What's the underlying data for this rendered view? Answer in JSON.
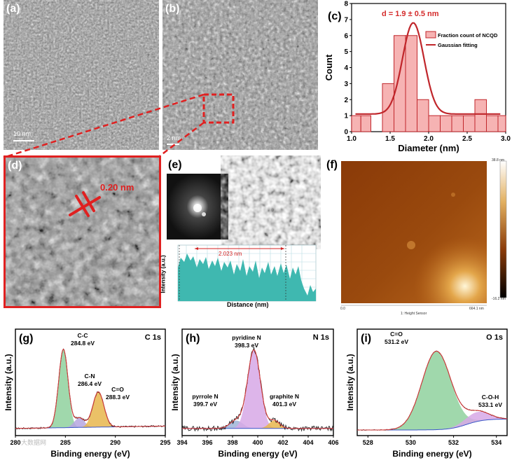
{
  "panels": {
    "a": {
      "label": "(a)",
      "scale_bar": "10 nm"
    },
    "b": {
      "label": "(b)",
      "scale_bar": "2 nm"
    },
    "c": {
      "label": "(c)"
    },
    "d": {
      "label": "(d)",
      "lattice": "0.20 nm"
    },
    "e": {
      "label": "(e)",
      "distance_label": "2.023 nm",
      "xlabel": "Distance (nm)",
      "ylabel": "Intensity (a.u.)"
    },
    "f": {
      "label": "(f)",
      "colorbar_max": "38.8 nm",
      "colorbar_min": "-16.2 nm",
      "axis_min": "0.0",
      "axis_max": "664.1 nm",
      "sensor_label": "1: Height Sensor"
    },
    "g": {
      "label": "(g)",
      "element": "C 1s",
      "xlabel": "Binding energy (eV)",
      "ylabel": "Intensity (a.u.)",
      "watermark": "大数据网"
    },
    "h": {
      "label": "(h)",
      "element": "N 1s",
      "xlabel": "Binding energy (eV)",
      "ylabel": "Intensity (a.u.)"
    },
    "i": {
      "label": "(i)",
      "element": "O 1s",
      "xlabel": "Binding energy (eV)",
      "ylabel": "Intensity (a.u.)"
    }
  },
  "chart_data": [
    {
      "id": "c",
      "type": "bar",
      "title": "d = 1.9 ± 0.5 nm",
      "xlabel": "Diameter (nm)",
      "ylabel": "Count",
      "xlim": [
        1.0,
        3.0
      ],
      "ylim": [
        0,
        8
      ],
      "xticks": [
        "1.0",
        "1.5",
        "2.0",
        "2.5",
        "3.0"
      ],
      "yticks": [
        "0",
        "1",
        "2",
        "3",
        "4",
        "5",
        "6",
        "7",
        "8"
      ],
      "bins": [
        1.0,
        1.1,
        1.2,
        1.3,
        1.4,
        1.5,
        1.6,
        1.7,
        1.8,
        1.9,
        2.0,
        2.1,
        2.2,
        2.3,
        2.4,
        2.5,
        2.6,
        2.7,
        2.8,
        2.9,
        3.0
      ],
      "legend": [
        "Fraction count of NCQD",
        "Gaussian fitting"
      ],
      "legend_position": "top-right",
      "colors": {
        "bar_fill": "#f6b3b3",
        "bar_edge": "#c0262b",
        "fit": "#c0262b",
        "title": "#d42a2a"
      }
    },
    {
      "id": "g",
      "type": "line",
      "title": "C 1s",
      "xlabel": "Binding energy (eV)",
      "ylabel": "Intensity (a.u.)",
      "xlim": [
        280,
        295
      ],
      "xticks": [
        "280",
        "285",
        "290",
        "295"
      ],
      "peaks": [
        {
          "name": "C-C",
          "value": "284.8 eV",
          "center": 284.8,
          "height": 1.0,
          "width": 1.1,
          "color": "#8fd19e"
        },
        {
          "name": "C-N",
          "value": "286.4 eV",
          "center": 286.4,
          "height": 0.12,
          "width": 1.2,
          "color": "#b6a6e0"
        },
        {
          "name": "C=O",
          "value": "288.3 eV",
          "center": 288.3,
          "height": 0.45,
          "width": 1.3,
          "color": "#e8b64c"
        }
      ]
    },
    {
      "id": "h",
      "type": "line",
      "title": "N 1s",
      "xlabel": "Binding energy (eV)",
      "ylabel": "Intensity (a.u.)",
      "xlim": [
        394,
        406
      ],
      "xticks": [
        "394",
        "396",
        "398",
        "400",
        "402",
        "404",
        "406"
      ],
      "peaks": [
        {
          "name": "pyridine N",
          "value": "398.3 eV",
          "center": 398.3,
          "height": 0.1,
          "width": 1.2,
          "color": "#9fb4d8"
        },
        {
          "name": "pyrrole N",
          "value": "399.7 eV",
          "center": 399.7,
          "height": 1.0,
          "width": 1.2,
          "color": "#d7a8e6"
        },
        {
          "name": "graphite N",
          "value": "401.3 eV",
          "center": 401.3,
          "height": 0.1,
          "width": 1.0,
          "color": "#e8b64c"
        }
      ]
    },
    {
      "id": "i",
      "type": "line",
      "title": "O 1s",
      "xlabel": "Binding energy (eV)",
      "ylabel": "Intensity (a.u.)",
      "xlim": [
        527.5,
        534.5
      ],
      "xticks": [
        "528",
        "530",
        "532",
        "534"
      ],
      "peaks": [
        {
          "name": "C=O",
          "value": "531.2 eV",
          "center": 531.2,
          "height": 1.0,
          "width": 1.6,
          "color": "#8fd19e"
        },
        {
          "name": "C-O-H",
          "value": "533.1 eV",
          "center": 533.1,
          "height": 0.12,
          "width": 1.3,
          "color": "#d7a8e6"
        }
      ]
    }
  ]
}
